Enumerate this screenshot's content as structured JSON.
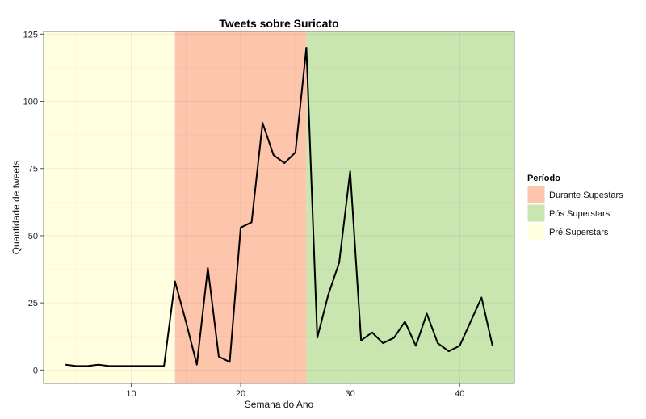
{
  "chart_data": {
    "type": "line",
    "title": "Tweets sobre Suricato",
    "xlabel": "Semana do Ano",
    "ylabel": "Quantidade de tweets",
    "xlim": [
      2,
      45
    ],
    "ylim": [
      -5,
      126
    ],
    "x_ticks": [
      10,
      20,
      30,
      40
    ],
    "y_ticks": [
      0,
      25,
      50,
      75,
      100,
      125
    ],
    "grid": true,
    "series": [
      {
        "color": "#000000",
        "x": [
          4,
          5,
          6,
          7,
          8,
          9,
          10,
          11,
          12,
          13,
          14,
          15,
          16,
          17,
          18,
          19,
          20,
          21,
          22,
          23,
          24,
          25,
          26,
          27,
          28,
          29,
          30,
          31,
          32,
          33,
          34,
          35,
          36,
          37,
          38,
          39,
          40,
          41,
          42,
          43
        ],
        "y": [
          2,
          1.5,
          1.5,
          2,
          1.5,
          1.5,
          1.5,
          1.5,
          1.5,
          1.5,
          33,
          18,
          2,
          38,
          5,
          3,
          53,
          55,
          92,
          80,
          77,
          81,
          120,
          12,
          28,
          40,
          74,
          11,
          14,
          10,
          12,
          18,
          9,
          21,
          10,
          7,
          9,
          18,
          27,
          9
        ]
      }
    ],
    "regions": [
      {
        "label": "Pré Superstars",
        "from": 2,
        "to": 14,
        "color": "#ffffe0"
      },
      {
        "label": "Durante Supestars",
        "from": 14,
        "to": 26,
        "color": "#fcc5ac"
      },
      {
        "label": "Pós Superstars",
        "from": 26,
        "to": 45,
        "color": "#c9e6b0"
      }
    ],
    "legend": {
      "title": "Período",
      "position": "right",
      "items": [
        {
          "label": "Durante Supestars",
          "color": "#fcc5ac"
        },
        {
          "label": "Pós Superstars",
          "color": "#c9e6b0"
        },
        {
          "label": "Pré Superstars",
          "color": "#ffffe0"
        }
      ]
    }
  }
}
